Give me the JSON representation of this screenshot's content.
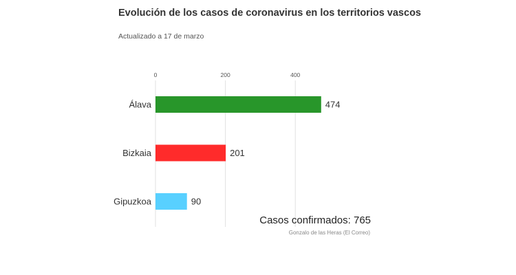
{
  "header": {
    "title": "Evolución de los casos de coronavirus en los territorios vascos",
    "subtitle": "Actualizado a 17 de marzo"
  },
  "footer": {
    "total": "Casos confirmados: 765",
    "credit": "Gonzalo de las Heras (El Correo)"
  },
  "chart_data": {
    "type": "bar",
    "orientation": "horizontal",
    "categories": [
      "Álava",
      "Bizkaia",
      "Gipuzkoa"
    ],
    "values": [
      474,
      201,
      90
    ],
    "colors": [
      "#28962a",
      "#ff2b2b",
      "#58d0ff"
    ],
    "xlim": [
      0,
      500
    ],
    "xticks": [
      0,
      200,
      400
    ],
    "tick_position": "top",
    "grid": true,
    "title": "Evolución de los casos de coronavirus en los territorios vascos",
    "subtitle": "Actualizado a 17 de marzo",
    "xlabel": "",
    "ylabel": ""
  }
}
